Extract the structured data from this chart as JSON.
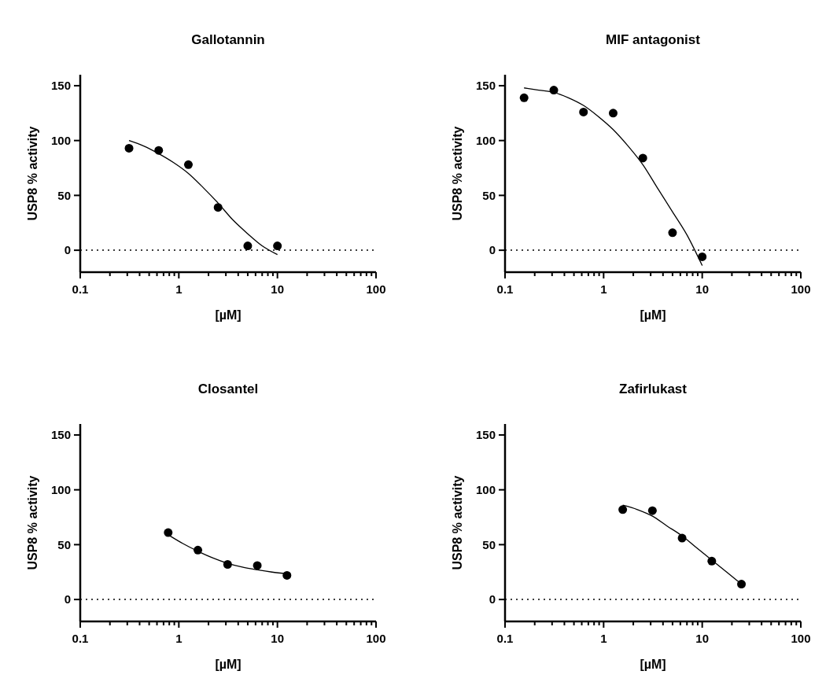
{
  "chart_data": [
    {
      "type": "scatter",
      "title": "Gallotannin",
      "xlabel": "[µM]",
      "ylabel": "USP8 % activity",
      "log": "x",
      "xlim": [
        0.1,
        100
      ],
      "ylim": [
        -20,
        160
      ],
      "yticks": [
        0,
        50,
        100,
        150
      ],
      "xticks": [
        0.1,
        {
          "value": 0.2,
          "label": null
        },
        {
          "value": 0.3,
          "label": null
        },
        {
          "value": 0.4,
          "label": null
        },
        {
          "value": 0.5,
          "label": null
        },
        {
          "value": 0.6,
          "label": null
        },
        {
          "value": 0.7,
          "label": null
        },
        {
          "value": 0.8,
          "label": null
        },
        {
          "value": 0.9,
          "label": null
        },
        1,
        {
          "value": 2,
          "label": null
        },
        {
          "value": 3,
          "label": null
        },
        {
          "value": 4,
          "label": null
        },
        {
          "value": 5,
          "label": null
        },
        {
          "value": 6,
          "label": null
        },
        {
          "value": 7,
          "label": null
        },
        {
          "value": 8,
          "label": null
        },
        {
          "value": 9,
          "label": null
        },
        10,
        {
          "value": 20,
          "label": null
        },
        {
          "value": 30,
          "label": null
        },
        {
          "value": 40,
          "label": null
        },
        {
          "value": 50,
          "label": null
        },
        {
          "value": 60,
          "label": null
        },
        {
          "value": 70,
          "label": null
        },
        {
          "value": 80,
          "label": null
        },
        {
          "value": 90,
          "label": null
        },
        100
      ],
      "ref_lines": [
        {
          "axis": "y",
          "value": 0,
          "line_style": "dotted",
          "color": "#000000"
        }
      ],
      "series": [
        {
          "type": "scatter",
          "marker": "circle",
          "color": "#000000",
          "x": [
            0.3125,
            0.625,
            1.25,
            2.5,
            5,
            10
          ],
          "values": [
            93,
            91,
            78,
            39,
            4,
            4
          ]
        },
        {
          "type": "line",
          "marker": "none",
          "line_style": "solid",
          "color": "#000000",
          "x": [
            0.3125,
            0.44,
            0.625,
            0.88,
            1.25,
            1.77,
            2.5,
            3.5,
            5,
            7,
            10
          ],
          "values": [
            100,
            95,
            88,
            80,
            70,
            57,
            43,
            28,
            15,
            4,
            -4
          ]
        }
      ]
    },
    {
      "type": "scatter",
      "title": "MIF antagonist",
      "xlabel": "[µM]",
      "ylabel": "USP8 % activity",
      "log": "x",
      "xlim": [
        0.1,
        100
      ],
      "ylim": [
        -20,
        160
      ],
      "yticks": [
        0,
        50,
        100,
        150
      ],
      "xticks": [
        0.1,
        {
          "value": 0.2,
          "label": null
        },
        {
          "value": 0.3,
          "label": null
        },
        {
          "value": 0.4,
          "label": null
        },
        {
          "value": 0.5,
          "label": null
        },
        {
          "value": 0.6,
          "label": null
        },
        {
          "value": 0.7,
          "label": null
        },
        {
          "value": 0.8,
          "label": null
        },
        {
          "value": 0.9,
          "label": null
        },
        1,
        {
          "value": 2,
          "label": null
        },
        {
          "value": 3,
          "label": null
        },
        {
          "value": 4,
          "label": null
        },
        {
          "value": 5,
          "label": null
        },
        {
          "value": 6,
          "label": null
        },
        {
          "value": 7,
          "label": null
        },
        {
          "value": 8,
          "label": null
        },
        {
          "value": 9,
          "label": null
        },
        10,
        {
          "value": 20,
          "label": null
        },
        {
          "value": 30,
          "label": null
        },
        {
          "value": 40,
          "label": null
        },
        {
          "value": 50,
          "label": null
        },
        {
          "value": 60,
          "label": null
        },
        {
          "value": 70,
          "label": null
        },
        {
          "value": 80,
          "label": null
        },
        {
          "value": 90,
          "label": null
        },
        100
      ],
      "ref_lines": [
        {
          "axis": "y",
          "value": 0,
          "line_style": "dotted",
          "color": "#000000"
        }
      ],
      "series": [
        {
          "type": "scatter",
          "marker": "circle",
          "color": "#000000",
          "x": [
            0.156,
            0.3125,
            0.625,
            1.25,
            2.5,
            5,
            10
          ],
          "values": [
            139,
            146,
            126,
            125,
            84,
            16,
            -6
          ]
        },
        {
          "type": "line",
          "marker": "none",
          "line_style": "solid",
          "color": "#000000",
          "x": [
            0.156,
            0.22,
            0.3125,
            0.44,
            0.625,
            0.88,
            1.25,
            1.77,
            2.5,
            3.5,
            5,
            7,
            10
          ],
          "values": [
            148,
            146,
            144,
            139,
            132,
            122,
            110,
            95,
            78,
            57,
            35,
            14,
            -14
          ]
        }
      ]
    },
    {
      "type": "scatter",
      "title": "Closantel",
      "xlabel": "[µM]",
      "ylabel": "USP8 % activity",
      "log": "x",
      "xlim": [
        0.1,
        100
      ],
      "ylim": [
        -20,
        160
      ],
      "yticks": [
        0,
        50,
        100,
        150
      ],
      "xticks": [
        0.1,
        {
          "value": 0.2,
          "label": null
        },
        {
          "value": 0.3,
          "label": null
        },
        {
          "value": 0.4,
          "label": null
        },
        {
          "value": 0.5,
          "label": null
        },
        {
          "value": 0.6,
          "label": null
        },
        {
          "value": 0.7,
          "label": null
        },
        {
          "value": 0.8,
          "label": null
        },
        {
          "value": 0.9,
          "label": null
        },
        1,
        {
          "value": 2,
          "label": null
        },
        {
          "value": 3,
          "label": null
        },
        {
          "value": 4,
          "label": null
        },
        {
          "value": 5,
          "label": null
        },
        {
          "value": 6,
          "label": null
        },
        {
          "value": 7,
          "label": null
        },
        {
          "value": 8,
          "label": null
        },
        {
          "value": 9,
          "label": null
        },
        10,
        {
          "value": 20,
          "label": null
        },
        {
          "value": 30,
          "label": null
        },
        {
          "value": 40,
          "label": null
        },
        {
          "value": 50,
          "label": null
        },
        {
          "value": 60,
          "label": null
        },
        {
          "value": 70,
          "label": null
        },
        {
          "value": 80,
          "label": null
        },
        {
          "value": 90,
          "label": null
        },
        100
      ],
      "ref_lines": [
        {
          "axis": "y",
          "value": 0,
          "line_style": "dotted",
          "color": "#000000"
        }
      ],
      "series": [
        {
          "type": "scatter",
          "marker": "circle",
          "color": "#000000",
          "x": [
            0.78,
            1.56,
            3.125,
            6.25,
            12.5
          ],
          "values": [
            61,
            45,
            32,
            31,
            22
          ]
        },
        {
          "type": "line",
          "marker": "none",
          "line_style": "solid",
          "color": "#000000",
          "x": [
            0.78,
            1.1,
            1.56,
            2.2,
            3.125,
            4.4,
            6.25,
            8.8,
            12.5
          ],
          "values": [
            59,
            51,
            44,
            38,
            33,
            29.5,
            27,
            25,
            23.5
          ]
        }
      ]
    },
    {
      "type": "scatter",
      "title": "Zafirlukast",
      "xlabel": "[µM]",
      "ylabel": "USP8 % activity",
      "log": "x",
      "xlim": [
        0.1,
        100
      ],
      "ylim": [
        -20,
        160
      ],
      "yticks": [
        0,
        50,
        100,
        150
      ],
      "xticks": [
        0.1,
        {
          "value": 0.2,
          "label": null
        },
        {
          "value": 0.3,
          "label": null
        },
        {
          "value": 0.4,
          "label": null
        },
        {
          "value": 0.5,
          "label": null
        },
        {
          "value": 0.6,
          "label": null
        },
        {
          "value": 0.7,
          "label": null
        },
        {
          "value": 0.8,
          "label": null
        },
        {
          "value": 0.9,
          "label": null
        },
        1,
        {
          "value": 2,
          "label": null
        },
        {
          "value": 3,
          "label": null
        },
        {
          "value": 4,
          "label": null
        },
        {
          "value": 5,
          "label": null
        },
        {
          "value": 6,
          "label": null
        },
        {
          "value": 7,
          "label": null
        },
        {
          "value": 8,
          "label": null
        },
        {
          "value": 9,
          "label": null
        },
        10,
        {
          "value": 20,
          "label": null
        },
        {
          "value": 30,
          "label": null
        },
        {
          "value": 40,
          "label": null
        },
        {
          "value": 50,
          "label": null
        },
        {
          "value": 60,
          "label": null
        },
        {
          "value": 70,
          "label": null
        },
        {
          "value": 80,
          "label": null
        },
        {
          "value": 90,
          "label": null
        },
        100
      ],
      "ref_lines": [
        {
          "axis": "y",
          "value": 0,
          "line_style": "dotted",
          "color": "#000000"
        }
      ],
      "series": [
        {
          "type": "scatter",
          "marker": "circle",
          "color": "#000000",
          "x": [
            1.5625,
            3.125,
            6.25,
            12.5,
            25
          ],
          "values": [
            82,
            81,
            56,
            35,
            14
          ]
        },
        {
          "type": "line",
          "marker": "none",
          "line_style": "solid",
          "color": "#000000",
          "x": [
            1.5625,
            2.2,
            3.125,
            4.4,
            6.25,
            8.8,
            12.5,
            17.7,
            25
          ],
          "values": [
            86,
            82,
            76,
            67,
            58,
            47,
            36,
            25,
            14
          ]
        }
      ]
    }
  ]
}
